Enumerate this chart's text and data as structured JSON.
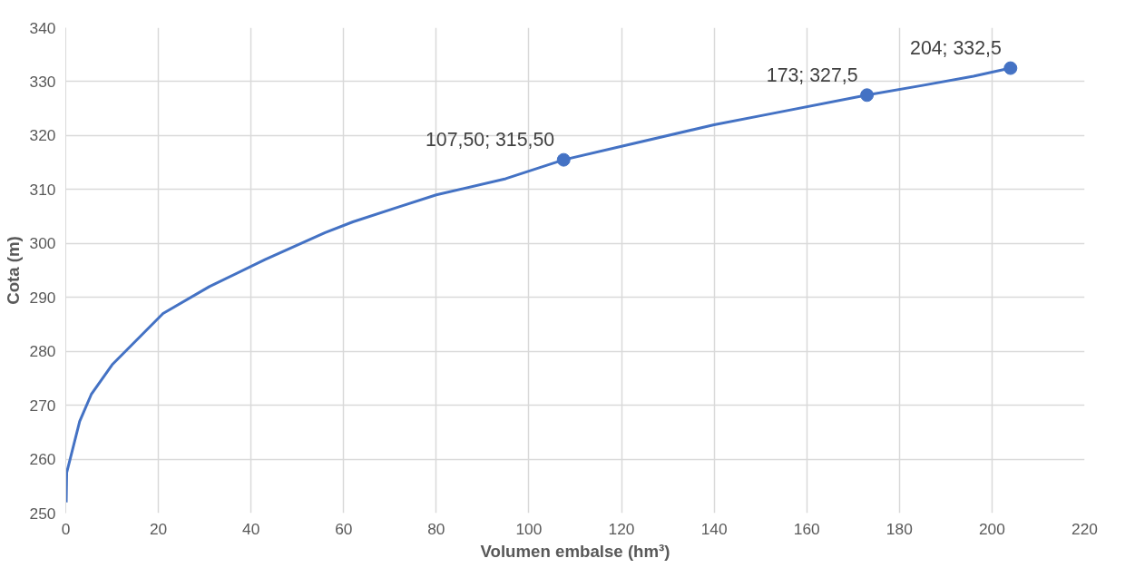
{
  "chart_data": {
    "type": "line",
    "xlabel": "Volumen embalse (hm³)",
    "ylabel": "Cota (m)",
    "xlim": [
      0,
      220
    ],
    "ylim": [
      250,
      340
    ],
    "xticks": [
      0,
      20,
      40,
      60,
      80,
      100,
      120,
      140,
      160,
      180,
      200,
      220
    ],
    "yticks": [
      250,
      260,
      270,
      280,
      290,
      300,
      310,
      320,
      330,
      340
    ],
    "grid": true,
    "series": [
      {
        "type": "line",
        "color": "#4472c4",
        "marker": "none",
        "x": [
          0.1,
          0.2,
          3,
          5.5,
          10,
          21,
          31,
          43,
          56,
          62,
          72,
          80,
          95,
          107.5,
          120,
          140,
          152,
          173,
          185,
          196,
          204
        ],
        "values": [
          252,
          257.5,
          267,
          272,
          277.5,
          287,
          292,
          297,
          302,
          304,
          306.8,
          309,
          312,
          315.5,
          318,
          322,
          324,
          327.5,
          329.3,
          331,
          332.5
        ]
      },
      {
        "type": "scatter",
        "color": "#4472c4",
        "marker": "circle",
        "x": [
          107.5,
          173,
          204
        ],
        "values": [
          315.5,
          327.5,
          332.5
        ],
        "value_labels": [
          "107,50; 315,50",
          "173; 327,5",
          "204; 332,5"
        ]
      }
    ]
  }
}
